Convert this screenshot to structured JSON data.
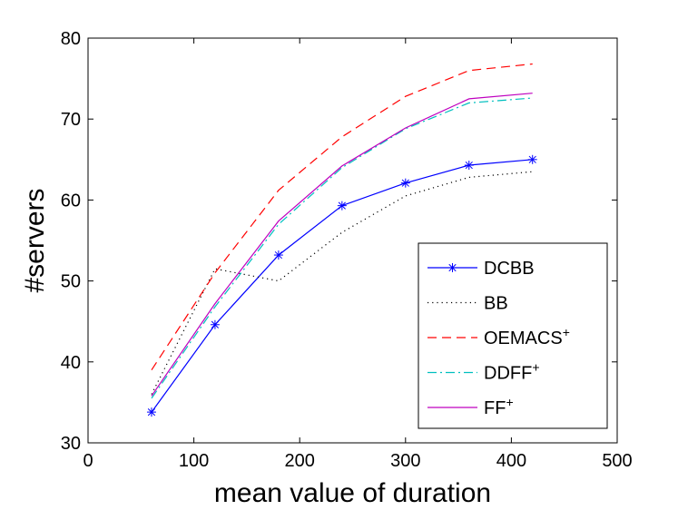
{
  "chart_data": {
    "type": "line",
    "title": "",
    "xlabel": "mean value of duration",
    "ylabel": "#servers",
    "xlim": [
      0,
      500
    ],
    "ylim": [
      30,
      80
    ],
    "xticks": [
      0,
      100,
      200,
      300,
      400,
      500
    ],
    "yticks": [
      30,
      40,
      50,
      60,
      70,
      80
    ],
    "grid": false,
    "legend_position": "bottom-right",
    "x": [
      60,
      120,
      180,
      240,
      300,
      360,
      420
    ],
    "series": [
      {
        "name": "DCBB",
        "sup": "",
        "color": "#0000ff",
        "dash": "solid",
        "marker": "asterisk",
        "values": [
          33.8,
          44.6,
          53.2,
          59.3,
          62.1,
          64.3,
          65.0
        ]
      },
      {
        "name": "BB",
        "sup": "",
        "color": "#000000",
        "dash": "dotted",
        "marker": "none",
        "values": [
          36.0,
          51.5,
          50.0,
          56.0,
          60.5,
          62.8,
          63.5
        ]
      },
      {
        "name": "OEMACS",
        "sup": "+",
        "color": "#ff0000",
        "dash": "dashed",
        "marker": "none",
        "values": [
          39.0,
          51.0,
          61.2,
          67.8,
          72.8,
          76.0,
          76.8
        ]
      },
      {
        "name": "DDFF",
        "sup": "+",
        "color": "#00bfbf",
        "dash": "dashdot",
        "marker": "none",
        "values": [
          35.5,
          46.8,
          57.0,
          64.0,
          68.8,
          72.0,
          72.6
        ]
      },
      {
        "name": "FF",
        "sup": "+",
        "color": "#bf00bf",
        "dash": "solid",
        "marker": "none",
        "values": [
          35.8,
          47.2,
          57.4,
          64.2,
          68.9,
          72.5,
          73.2
        ]
      }
    ]
  }
}
